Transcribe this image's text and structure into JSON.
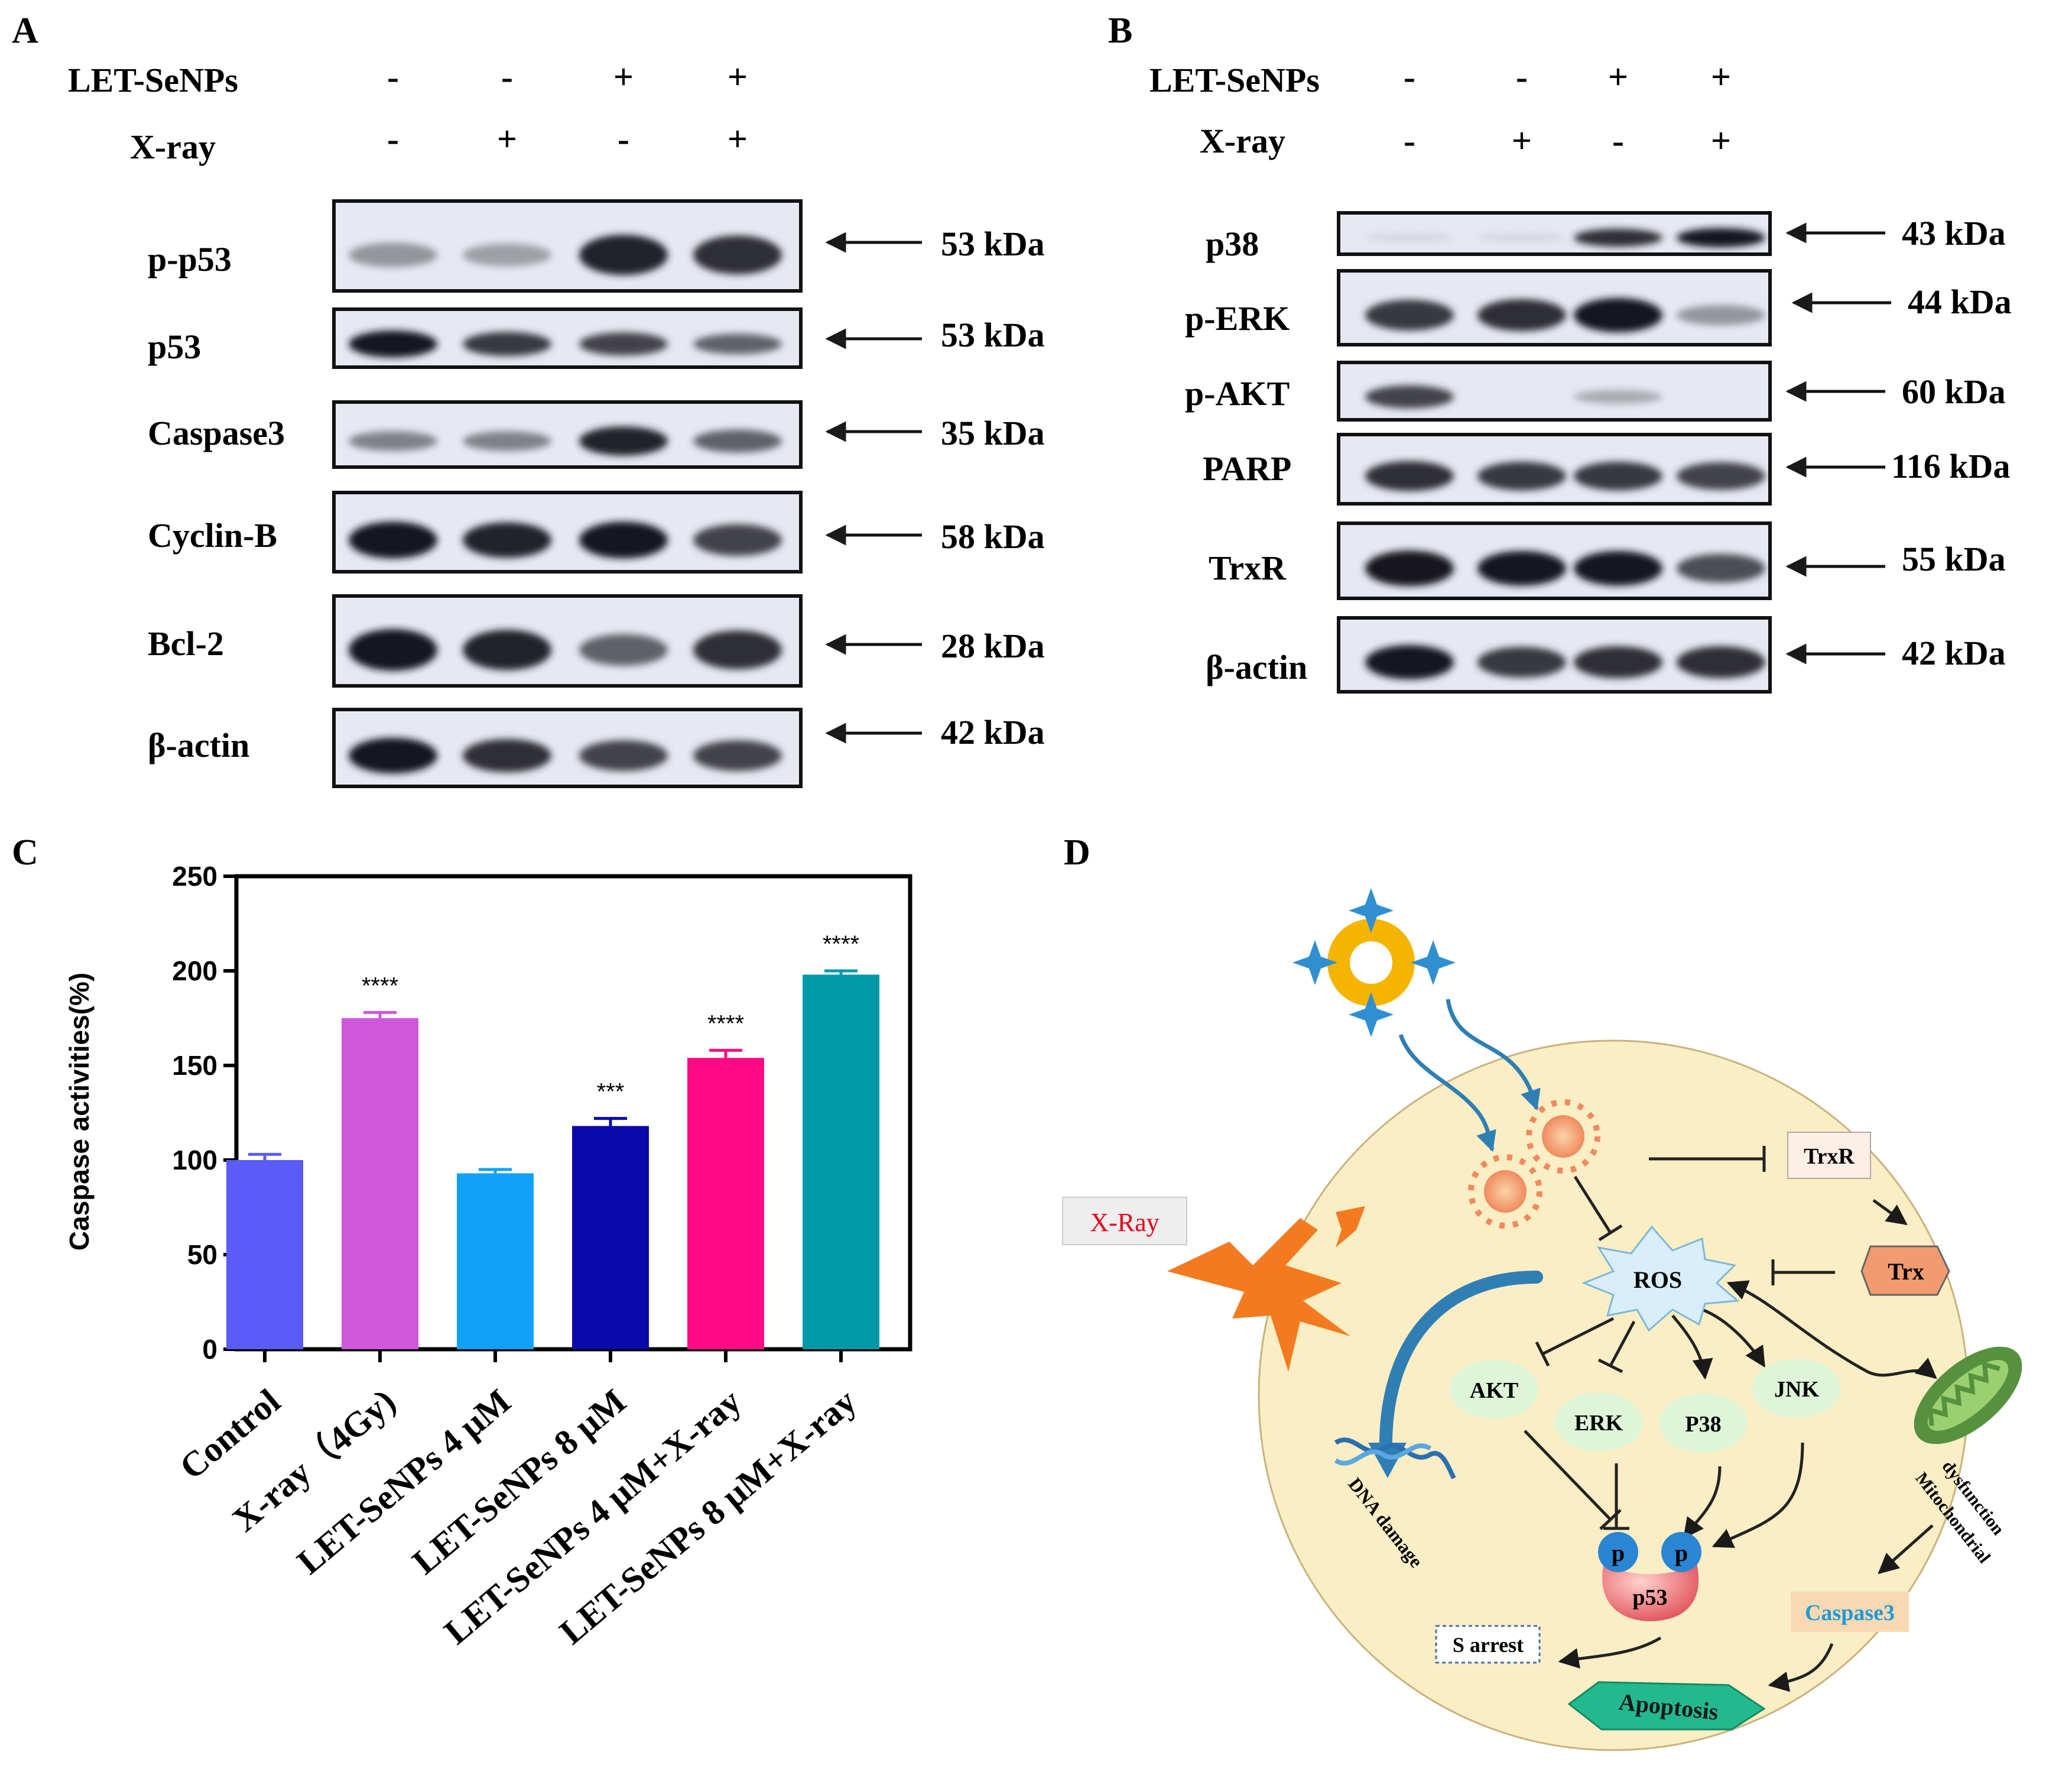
{
  "panels": {
    "A": "A",
    "B": "B",
    "C": "C",
    "D": "D"
  },
  "panel_a": {
    "treatments": [
      {
        "label": "LET-SeNPs",
        "signs": [
          "-",
          "-",
          "+",
          "+"
        ]
      },
      {
        "label": "X-ray",
        "signs": [
          "-",
          "+",
          "-",
          "+"
        ]
      }
    ],
    "blots": [
      {
        "protein": "p-p53",
        "size": "53 kDa",
        "intensity": [
          0.35,
          0.3,
          0.9,
          0.85
        ]
      },
      {
        "protein": "p53",
        "size": "53 kDa",
        "intensity": [
          0.95,
          0.8,
          0.75,
          0.6
        ]
      },
      {
        "protein": "Caspase3",
        "size": "35 kDa",
        "intensity": [
          0.45,
          0.45,
          0.9,
          0.6
        ]
      },
      {
        "protein": "Cyclin-B",
        "size": "58 kDa",
        "intensity": [
          0.95,
          0.9,
          0.95,
          0.75
        ]
      },
      {
        "protein": "Bcl-2",
        "size": "28 kDa",
        "intensity": [
          0.95,
          0.9,
          0.6,
          0.85
        ]
      },
      {
        "protein": "β-actin",
        "size": "42 kDa",
        "intensity": [
          0.95,
          0.85,
          0.75,
          0.75
        ]
      }
    ]
  },
  "panel_b": {
    "treatments": [
      {
        "label": "LET-SeNPs",
        "signs": [
          "-",
          "-",
          "+",
          "+"
        ]
      },
      {
        "label": "X-ray",
        "signs": [
          "-",
          "+",
          "-",
          "+"
        ]
      }
    ],
    "blots": [
      {
        "protein": "p38",
        "size": "43 kDa",
        "intensity": [
          0.05,
          0.05,
          0.85,
          0.95
        ]
      },
      {
        "protein": "p-ERK",
        "size": "44 kDa",
        "intensity": [
          0.8,
          0.85,
          0.95,
          0.35
        ]
      },
      {
        "protein": "p-AKT",
        "size": "60 kDa",
        "intensity": [
          0.75,
          0.0,
          0.25,
          0.0
        ]
      },
      {
        "protein": "PARP",
        "size": "116 kDa",
        "intensity": [
          0.85,
          0.8,
          0.8,
          0.75
        ]
      },
      {
        "protein": "TrxR",
        "size": "55 kDa",
        "intensity": [
          0.98,
          0.95,
          0.95,
          0.7
        ]
      },
      {
        "protein": "β-actin",
        "size": "42 kDa",
        "intensity": [
          0.95,
          0.8,
          0.85,
          0.85
        ]
      }
    ]
  },
  "chart_data": {
    "type": "bar",
    "title": "",
    "xlabel": "",
    "ylabel": "Caspase activities(%)",
    "ylim": [
      0,
      250
    ],
    "yticks": [
      0,
      50,
      100,
      150,
      200,
      250
    ],
    "categories": [
      "Control",
      "X-ray（4Gy)",
      "LET-SeNPs 4 μM",
      "LET-SeNPs 8 μM",
      "LET-SeNPs 4 μM+X-ray",
      "LET-SeNPs 8 μM+X-ray"
    ],
    "values": [
      100,
      175,
      93,
      118,
      154,
      198
    ],
    "errors": [
      3,
      3,
      2,
      4,
      4,
      2
    ],
    "significance": [
      "",
      "****",
      "",
      "***",
      "****",
      "****"
    ],
    "colors": [
      "#5b5bf7",
      "#cf57d9",
      "#11a2f7",
      "#0a0aaa",
      "#ff0a85",
      "#0099aa"
    ]
  },
  "panel_d": {
    "xray_label": "X-Ray",
    "ros": "ROS",
    "trxr": "TrxR",
    "trx": "Trx",
    "akt": "AKT",
    "erk": "ERK",
    "p38": "P38",
    "jnk": "JNK",
    "p": "p",
    "p53": "p53",
    "dna": "DNA damage",
    "mito_line1": "Mitochondrial",
    "mito_line2": "dysfunction",
    "caspase3": "Caspase3",
    "s_arrest": "S arrest",
    "apoptosis": "Apoptosis",
    "colors": {
      "cell_fill": "#fbeec4",
      "nanoparticle": "#f5b400",
      "sparkle": "#2f8fd1",
      "arrow_blue": "#2f7fb5",
      "xray_text": "#e8001a",
      "xray_bolt": "#f47a20",
      "ros_fill": "#d9eefa",
      "node_fill": "#def5d8",
      "p_ball": "#2a86d4",
      "p53_fill": "#e8505b",
      "caspase_text": "#1f9ad6",
      "apoptosis_fill": "#23b98f",
      "mito": "#55913e"
    }
  }
}
